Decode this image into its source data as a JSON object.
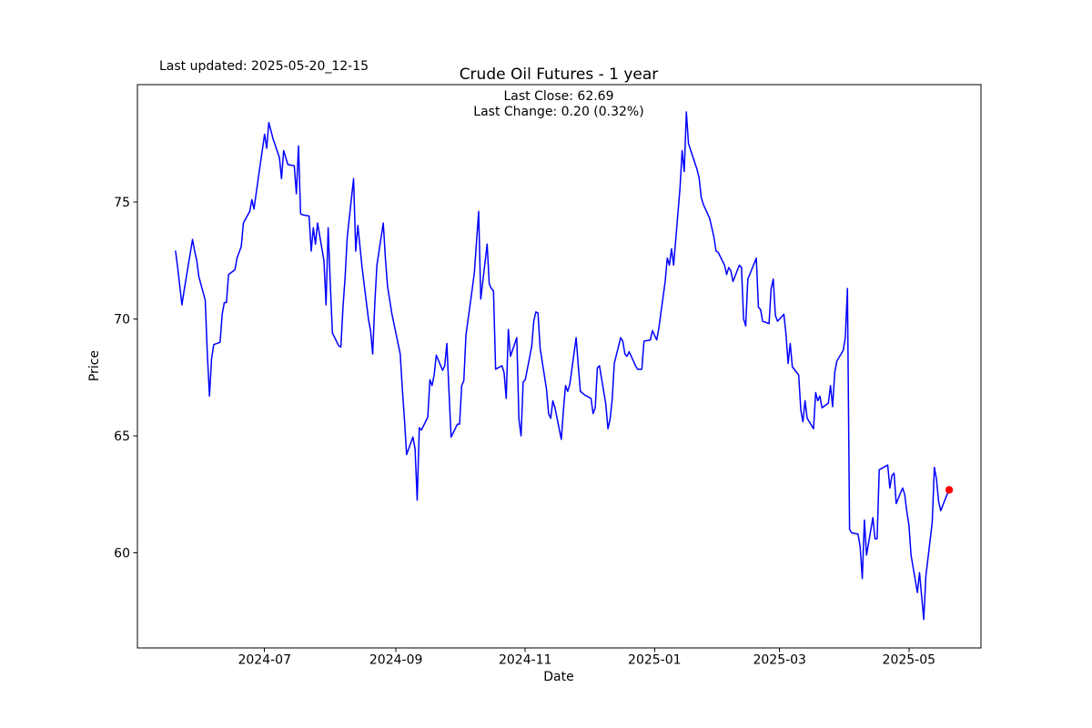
{
  "header": {
    "last_updated": "Last updated: 2025-05-20_12-15",
    "title": "Crude Oil Futures - 1 year",
    "last_close": "Last Close: 62.69",
    "last_change": "Last Change: 0.20 (0.32%)"
  },
  "axes_labels": {
    "x": "Date",
    "y": "Price"
  },
  "summary": {
    "last_close_value": 62.69,
    "last_change_value": 0.2,
    "last_change_percent": "0.32%"
  },
  "chart_data": {
    "type": "line",
    "title": "Crude Oil Futures - 1 year",
    "xlabel": "Date",
    "ylabel": "Price",
    "grid": false,
    "legend": null,
    "background_color": "#ffffff",
    "spine_color": "#000000",
    "xlim": [
      "2024-05-02",
      "2025-06-04"
    ],
    "ylim": [
      55.93,
      80.02
    ],
    "x_ticks": [
      "2024-07",
      "2024-09",
      "2024-11",
      "2025-01",
      "2025-03",
      "2025-05"
    ],
    "y_ticks": [
      60,
      65,
      70,
      75
    ],
    "series": [
      {
        "name": "price",
        "color": "#0000ff",
        "line_width": 1.5,
        "points": [
          [
            "2024-05-20",
            72.9
          ],
          [
            "2024-05-21",
            72.2
          ],
          [
            "2024-05-22",
            71.4
          ],
          [
            "2024-05-23",
            70.6
          ],
          [
            "2024-05-24",
            71.2
          ],
          [
            "2024-05-28",
            73.4
          ],
          [
            "2024-05-29",
            72.9
          ],
          [
            "2024-05-30",
            72.5
          ],
          [
            "2024-05-31",
            71.8
          ],
          [
            "2024-06-03",
            70.8
          ],
          [
            "2024-06-04",
            68.5
          ],
          [
            "2024-06-05",
            66.7
          ],
          [
            "2024-06-06",
            68.3
          ],
          [
            "2024-06-07",
            68.9
          ],
          [
            "2024-06-10",
            69.0
          ],
          [
            "2024-06-11",
            70.2
          ],
          [
            "2024-06-12",
            70.7
          ],
          [
            "2024-06-13",
            70.7
          ],
          [
            "2024-06-14",
            71.9
          ],
          [
            "2024-06-17",
            72.1
          ],
          [
            "2024-06-18",
            72.6
          ],
          [
            "2024-06-20",
            73.1
          ],
          [
            "2024-06-21",
            74.1
          ],
          [
            "2024-06-24",
            74.6
          ],
          [
            "2024-06-25",
            75.1
          ],
          [
            "2024-06-26",
            74.7
          ],
          [
            "2024-06-28",
            76.0
          ],
          [
            "2024-07-01",
            77.9
          ],
          [
            "2024-07-02",
            77.3
          ],
          [
            "2024-07-03",
            78.4
          ],
          [
            "2024-07-05",
            77.7
          ],
          [
            "2024-07-08",
            76.9
          ],
          [
            "2024-07-09",
            76.0
          ],
          [
            "2024-07-10",
            77.2
          ],
          [
            "2024-07-12",
            76.6
          ],
          [
            "2024-07-15",
            76.55
          ],
          [
            "2024-07-16",
            75.35
          ],
          [
            "2024-07-17",
            77.4
          ],
          [
            "2024-07-18",
            74.5
          ],
          [
            "2024-07-19",
            74.45
          ],
          [
            "2024-07-22",
            74.4
          ],
          [
            "2024-07-23",
            72.9
          ],
          [
            "2024-07-24",
            73.9
          ],
          [
            "2024-07-25",
            73.2
          ],
          [
            "2024-07-26",
            74.1
          ],
          [
            "2024-07-29",
            72.5
          ],
          [
            "2024-07-30",
            70.6
          ],
          [
            "2024-07-31",
            73.9
          ],
          [
            "2024-08-01",
            71.5
          ],
          [
            "2024-08-02",
            69.4
          ],
          [
            "2024-08-05",
            68.85
          ],
          [
            "2024-08-06",
            68.8
          ],
          [
            "2024-08-07",
            70.5
          ],
          [
            "2024-08-08",
            71.8
          ],
          [
            "2024-08-09",
            73.5
          ],
          [
            "2024-08-12",
            76.0
          ],
          [
            "2024-08-13",
            72.9
          ],
          [
            "2024-08-14",
            74.0
          ],
          [
            "2024-08-16",
            72.2
          ],
          [
            "2024-08-19",
            70.0
          ],
          [
            "2024-08-20",
            69.5
          ],
          [
            "2024-08-21",
            68.5
          ],
          [
            "2024-08-22",
            70.65
          ],
          [
            "2024-08-23",
            72.3
          ],
          [
            "2024-08-26",
            74.1
          ],
          [
            "2024-08-27",
            72.6
          ],
          [
            "2024-08-28",
            71.4
          ],
          [
            "2024-08-30",
            70.25
          ],
          [
            "2024-09-03",
            68.5
          ],
          [
            "2024-09-04",
            67.0
          ],
          [
            "2024-09-05",
            65.7
          ],
          [
            "2024-09-06",
            64.2
          ],
          [
            "2024-09-09",
            64.95
          ],
          [
            "2024-09-10",
            64.45
          ],
          [
            "2024-09-11",
            62.25
          ],
          [
            "2024-09-12",
            65.35
          ],
          [
            "2024-09-13",
            65.25
          ],
          [
            "2024-09-16",
            65.8
          ],
          [
            "2024-09-17",
            67.4
          ],
          [
            "2024-09-18",
            67.15
          ],
          [
            "2024-09-19",
            67.6
          ],
          [
            "2024-09-20",
            68.45
          ],
          [
            "2024-09-23",
            67.8
          ],
          [
            "2024-09-24",
            68.0
          ],
          [
            "2024-09-25",
            68.95
          ],
          [
            "2024-09-26",
            66.9
          ],
          [
            "2024-09-27",
            64.95
          ],
          [
            "2024-09-30",
            65.5
          ],
          [
            "2024-10-01",
            65.5
          ],
          [
            "2024-10-02",
            67.15
          ],
          [
            "2024-10-03",
            67.35
          ],
          [
            "2024-10-04",
            69.3
          ],
          [
            "2024-10-07",
            71.3
          ],
          [
            "2024-10-08",
            72.0
          ],
          [
            "2024-10-09",
            73.3
          ],
          [
            "2024-10-10",
            74.6
          ],
          [
            "2024-10-11",
            70.85
          ],
          [
            "2024-10-14",
            73.2
          ],
          [
            "2024-10-15",
            71.5
          ],
          [
            "2024-10-16",
            71.3
          ],
          [
            "2024-10-17",
            71.2
          ],
          [
            "2024-10-18",
            67.85
          ],
          [
            "2024-10-21",
            68.0
          ],
          [
            "2024-10-22",
            67.7
          ],
          [
            "2024-10-23",
            66.6
          ],
          [
            "2024-10-24",
            69.55
          ],
          [
            "2024-10-25",
            68.4
          ],
          [
            "2024-10-28",
            69.2
          ],
          [
            "2024-10-29",
            65.7
          ],
          [
            "2024-10-30",
            65.0
          ],
          [
            "2024-10-31",
            67.3
          ],
          [
            "2024-11-01",
            67.4
          ],
          [
            "2024-11-04",
            68.8
          ],
          [
            "2024-11-05",
            69.9
          ],
          [
            "2024-11-06",
            70.3
          ],
          [
            "2024-11-07",
            70.25
          ],
          [
            "2024-11-08",
            68.75
          ],
          [
            "2024-11-11",
            67.0
          ],
          [
            "2024-11-12",
            65.95
          ],
          [
            "2024-11-13",
            65.75
          ],
          [
            "2024-11-14",
            66.5
          ],
          [
            "2024-11-15",
            66.2
          ],
          [
            "2024-11-18",
            64.85
          ],
          [
            "2024-11-19",
            66.1
          ],
          [
            "2024-11-20",
            67.15
          ],
          [
            "2024-11-21",
            66.9
          ],
          [
            "2024-11-22",
            67.2
          ],
          [
            "2024-11-25",
            69.2
          ],
          [
            "2024-11-26",
            68.0
          ],
          [
            "2024-11-27",
            66.9
          ],
          [
            "2024-11-29",
            66.75
          ],
          [
            "2024-12-02",
            66.6
          ],
          [
            "2024-12-03",
            65.95
          ],
          [
            "2024-12-04",
            66.2
          ],
          [
            "2024-12-05",
            67.9
          ],
          [
            "2024-12-06",
            68.0
          ],
          [
            "2024-12-09",
            66.35
          ],
          [
            "2024-12-10",
            65.3
          ],
          [
            "2024-12-11",
            65.7
          ],
          [
            "2024-12-12",
            66.55
          ],
          [
            "2024-12-13",
            68.1
          ],
          [
            "2024-12-16",
            69.2
          ],
          [
            "2024-12-17",
            69.05
          ],
          [
            "2024-12-18",
            68.5
          ],
          [
            "2024-12-19",
            68.4
          ],
          [
            "2024-12-20",
            68.6
          ],
          [
            "2024-12-23",
            68.0
          ],
          [
            "2024-12-24",
            67.85
          ],
          [
            "2024-12-26",
            67.85
          ],
          [
            "2024-12-27",
            69.05
          ],
          [
            "2024-12-30",
            69.1
          ],
          [
            "2024-12-31",
            69.5
          ],
          [
            "2025-01-02",
            69.1
          ],
          [
            "2025-01-03",
            69.6
          ],
          [
            "2025-01-06",
            71.6
          ],
          [
            "2025-01-07",
            72.6
          ],
          [
            "2025-01-08",
            72.3
          ],
          [
            "2025-01-09",
            73.0
          ],
          [
            "2025-01-10",
            72.3
          ],
          [
            "2025-01-13",
            75.6
          ],
          [
            "2025-01-14",
            77.2
          ],
          [
            "2025-01-15",
            76.3
          ],
          [
            "2025-01-16",
            78.85
          ],
          [
            "2025-01-17",
            77.5
          ],
          [
            "2025-01-21",
            76.4
          ],
          [
            "2025-01-22",
            76.05
          ],
          [
            "2025-01-23",
            75.2
          ],
          [
            "2025-01-24",
            74.9
          ],
          [
            "2025-01-27",
            74.3
          ],
          [
            "2025-01-28",
            73.9
          ],
          [
            "2025-01-29",
            73.5
          ],
          [
            "2025-01-30",
            72.9
          ],
          [
            "2025-01-31",
            72.85
          ],
          [
            "2025-02-03",
            72.3
          ],
          [
            "2025-02-04",
            71.9
          ],
          [
            "2025-02-05",
            72.2
          ],
          [
            "2025-02-06",
            72.05
          ],
          [
            "2025-02-07",
            71.6
          ],
          [
            "2025-02-10",
            72.3
          ],
          [
            "2025-02-11",
            72.2
          ],
          [
            "2025-02-12",
            70.0
          ],
          [
            "2025-02-13",
            69.7
          ],
          [
            "2025-02-14",
            71.7
          ],
          [
            "2025-02-18",
            72.6
          ],
          [
            "2025-02-19",
            70.5
          ],
          [
            "2025-02-20",
            70.4
          ],
          [
            "2025-02-21",
            69.9
          ],
          [
            "2025-02-24",
            69.8
          ],
          [
            "2025-02-25",
            71.3
          ],
          [
            "2025-02-26",
            71.7
          ],
          [
            "2025-02-27",
            70.15
          ],
          [
            "2025-02-28",
            69.9
          ],
          [
            "2025-03-03",
            70.2
          ],
          [
            "2025-03-04",
            69.35
          ],
          [
            "2025-03-05",
            68.1
          ],
          [
            "2025-03-06",
            68.95
          ],
          [
            "2025-03-07",
            67.95
          ],
          [
            "2025-03-10",
            67.6
          ],
          [
            "2025-03-11",
            66.1
          ],
          [
            "2025-03-12",
            65.6
          ],
          [
            "2025-03-13",
            66.5
          ],
          [
            "2025-03-14",
            65.75
          ],
          [
            "2025-03-17",
            65.3
          ],
          [
            "2025-03-18",
            66.85
          ],
          [
            "2025-03-19",
            66.5
          ],
          [
            "2025-03-20",
            66.7
          ],
          [
            "2025-03-21",
            66.2
          ],
          [
            "2025-03-24",
            66.4
          ],
          [
            "2025-03-25",
            67.15
          ],
          [
            "2025-03-26",
            66.25
          ],
          [
            "2025-03-27",
            67.7
          ],
          [
            "2025-03-28",
            68.2
          ],
          [
            "2025-03-31",
            68.65
          ],
          [
            "2025-04-01",
            69.2
          ],
          [
            "2025-04-02",
            71.3
          ],
          [
            "2025-04-03",
            61.0
          ],
          [
            "2025-04-04",
            60.85
          ],
          [
            "2025-04-07",
            60.8
          ],
          [
            "2025-04-08",
            60.25
          ],
          [
            "2025-04-09",
            58.9
          ],
          [
            "2025-04-10",
            61.4
          ],
          [
            "2025-04-11",
            59.9
          ],
          [
            "2025-04-14",
            61.5
          ],
          [
            "2025-04-15",
            60.6
          ],
          [
            "2025-04-16",
            60.6
          ],
          [
            "2025-04-17",
            63.55
          ],
          [
            "2025-04-21",
            63.75
          ],
          [
            "2025-04-22",
            62.77
          ],
          [
            "2025-04-23",
            63.3
          ],
          [
            "2025-04-24",
            63.4
          ],
          [
            "2025-04-25",
            62.1
          ],
          [
            "2025-04-28",
            62.77
          ],
          [
            "2025-04-29",
            62.5
          ],
          [
            "2025-04-30",
            61.77
          ],
          [
            "2025-05-01",
            61.2
          ],
          [
            "2025-05-02",
            59.9
          ],
          [
            "2025-05-05",
            58.3
          ],
          [
            "2025-05-06",
            59.15
          ],
          [
            "2025-05-07",
            58.15
          ],
          [
            "2025-05-08",
            57.15
          ],
          [
            "2025-05-09",
            59.0
          ],
          [
            "2025-05-12",
            61.3
          ],
          [
            "2025-05-13",
            63.65
          ],
          [
            "2025-05-14",
            63.15
          ],
          [
            "2025-05-15",
            62.2
          ],
          [
            "2025-05-16",
            61.8
          ],
          [
            "2025-05-19",
            62.49
          ],
          [
            "2025-05-20",
            62.69
          ]
        ]
      }
    ],
    "last_point": {
      "date": "2025-05-20",
      "value": 62.69,
      "marker": "circle",
      "marker_color": "#ff0000"
    }
  }
}
